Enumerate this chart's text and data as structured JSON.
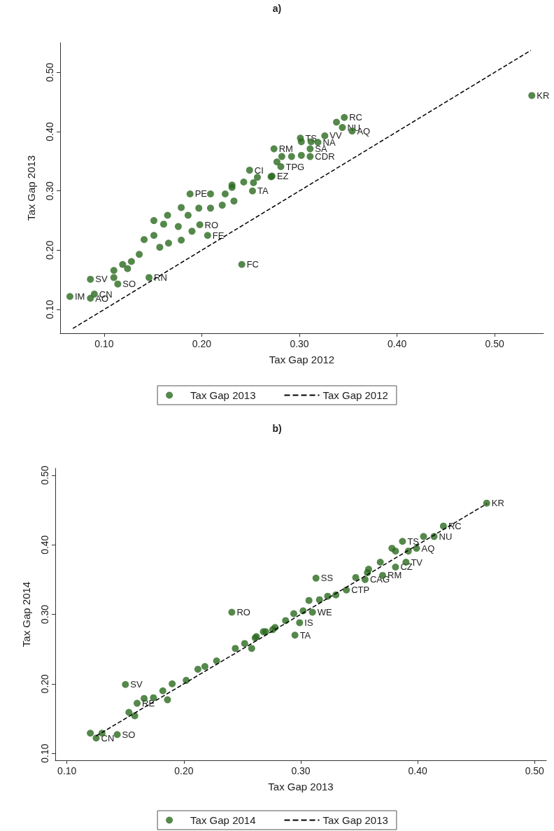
{
  "chart_data": [
    {
      "type": "scatter",
      "title": "a)",
      "xlabel": "Tax Gap 2012",
      "ylabel": "Tax Gap 2013",
      "xlim": [
        0.055,
        0.55
      ],
      "ylim": [
        0.06,
        0.55
      ],
      "xticks": [
        {
          "value": 0.1,
          "label": "0.10"
        },
        {
          "value": 0.2,
          "label": "0.20"
        },
        {
          "value": 0.3,
          "label": "0.30"
        },
        {
          "value": 0.4,
          "label": "0.40"
        },
        {
          "value": 0.5,
          "label": "0.50"
        }
      ],
      "yticks": [
        {
          "value": 0.1,
          "label": "0.10"
        },
        {
          "value": 0.2,
          "label": "0.20"
        },
        {
          "value": 0.3,
          "label": "0.30"
        },
        {
          "value": 0.4,
          "label": "0.40"
        },
        {
          "value": 0.5,
          "label": "0.50"
        }
      ],
      "grid": false,
      "legend": "bottom",
      "marker": "circle",
      "series": [
        {
          "name": "Tax Gap 2013",
          "type": "scatter",
          "color": "#2a6a1e",
          "x": [
            0.065,
            0.086,
            0.09,
            0.086,
            0.11,
            0.11,
            0.114,
            0.146,
            0.241,
            0.206,
            0.198,
            0.188,
            0.252,
            0.249,
            0.179,
            0.151,
            0.165,
            0.141,
            0.151,
            0.119,
            0.128,
            0.136,
            0.124,
            0.161,
            0.176,
            0.19,
            0.179,
            0.166,
            0.157,
            0.186,
            0.209,
            0.221,
            0.233,
            0.224,
            0.231,
            0.243,
            0.257,
            0.209,
            0.197,
            0.271,
            0.274,
            0.538,
            0.346,
            0.338,
            0.344,
            0.354,
            0.326,
            0.301,
            0.302,
            0.312,
            0.319,
            0.311,
            0.282,
            0.292,
            0.302,
            0.311,
            0.277,
            0.281,
            0.272,
            0.253,
            0.231
          ],
          "values": [
            0.122,
            0.119,
            0.126,
            0.151,
            0.166,
            0.154,
            0.143,
            0.154,
            0.176,
            0.225,
            0.243,
            0.295,
            0.3,
            0.335,
            0.272,
            0.25,
            0.259,
            0.218,
            0.225,
            0.176,
            0.181,
            0.193,
            0.169,
            0.244,
            0.24,
            0.232,
            0.217,
            0.212,
            0.205,
            0.259,
            0.271,
            0.276,
            0.283,
            0.295,
            0.306,
            0.315,
            0.323,
            0.295,
            0.271,
            0.324,
            0.371,
            0.461,
            0.424,
            0.416,
            0.407,
            0.401,
            0.393,
            0.389,
            0.383,
            0.383,
            0.382,
            0.371,
            0.358,
            0.358,
            0.36,
            0.358,
            0.349,
            0.341,
            0.325,
            0.314,
            0.31
          ]
        },
        {
          "name": "Tax Gap 2012",
          "type": "line",
          "color": "#000000",
          "line_style": "dashed",
          "marker": "none",
          "x": [
            0.068,
            0.537
          ],
          "values": [
            0.068,
            0.537
          ]
        }
      ],
      "annotations": [
        {
          "text": "IM",
          "x": 0.065,
          "y": 0.122
        },
        {
          "text": "AO",
          "x": 0.086,
          "y": 0.119
        },
        {
          "text": "CN",
          "x": 0.09,
          "y": 0.126
        },
        {
          "text": "SV",
          "x": 0.086,
          "y": 0.151
        },
        {
          "text": "SO",
          "x": 0.114,
          "y": 0.143
        },
        {
          "text": "RN",
          "x": 0.146,
          "y": 0.154
        },
        {
          "text": "FC",
          "x": 0.241,
          "y": 0.176
        },
        {
          "text": "FE",
          "x": 0.206,
          "y": 0.225
        },
        {
          "text": "RO",
          "x": 0.198,
          "y": 0.243
        },
        {
          "text": "PE",
          "x": 0.188,
          "y": 0.295
        },
        {
          "text": "TA",
          "x": 0.252,
          "y": 0.3
        },
        {
          "text": "CI",
          "x": 0.249,
          "y": 0.335
        },
        {
          "text": "EZ",
          "x": 0.272,
          "y": 0.325
        },
        {
          "text": "TPG",
          "x": 0.281,
          "y": 0.341
        },
        {
          "text": "RM",
          "x": 0.274,
          "y": 0.371
        },
        {
          "text": "CDR",
          "x": 0.311,
          "y": 0.358
        },
        {
          "text": "SA",
          "x": 0.311,
          "y": 0.371
        },
        {
          "text": "NA",
          "x": 0.319,
          "y": 0.382
        },
        {
          "text": "TS",
          "x": 0.301,
          "y": 0.389
        },
        {
          "text": "VV",
          "x": 0.326,
          "y": 0.393
        },
        {
          "text": "AQ",
          "x": 0.354,
          "y": 0.401
        },
        {
          "text": "NU",
          "x": 0.344,
          "y": 0.407
        },
        {
          "text": "RC",
          "x": 0.346,
          "y": 0.424
        },
        {
          "text": "KR",
          "x": 0.538,
          "y": 0.461
        }
      ]
    },
    {
      "type": "scatter",
      "title": "b)",
      "xlabel": "Tax Gap 2013",
      "ylabel": "Tax Gap 2014",
      "xlim": [
        0.09,
        0.51
      ],
      "ylim": [
        0.09,
        0.51
      ],
      "xticks": [
        {
          "value": 0.1,
          "label": "0.10"
        },
        {
          "value": 0.2,
          "label": "0.20"
        },
        {
          "value": 0.3,
          "label": "0.30"
        },
        {
          "value": 0.4,
          "label": "0.40"
        },
        {
          "value": 0.5,
          "label": "0.50"
        }
      ],
      "yticks": [
        {
          "value": 0.1,
          "label": "0.10"
        },
        {
          "value": 0.2,
          "label": "0.20"
        },
        {
          "value": 0.3,
          "label": "0.30"
        },
        {
          "value": 0.4,
          "label": "0.40"
        },
        {
          "value": 0.5,
          "label": "0.50"
        }
      ],
      "grid": false,
      "legend": "bottom",
      "marker": "circle",
      "series": [
        {
          "name": "Tax Gap 2014",
          "type": "scatter",
          "color": "#2a6a1e",
          "x": [
            0.241,
            0.15,
            0.143,
            0.12,
            0.125,
            0.13,
            0.153,
            0.158,
            0.16,
            0.166,
            0.174,
            0.182,
            0.19,
            0.186,
            0.202,
            0.212,
            0.218,
            0.228,
            0.244,
            0.252,
            0.262,
            0.27,
            0.278,
            0.459,
            0.422,
            0.414,
            0.405,
            0.387,
            0.399,
            0.378,
            0.381,
            0.392,
            0.39,
            0.381,
            0.368,
            0.358,
            0.37,
            0.357,
            0.347,
            0.355,
            0.313,
            0.339,
            0.33,
            0.323,
            0.316,
            0.307,
            0.31,
            0.302,
            0.294,
            0.287,
            0.299,
            0.295,
            0.276,
            0.268,
            0.261,
            0.258
          ],
          "values": [
            0.303,
            0.199,
            0.127,
            0.129,
            0.122,
            0.129,
            0.159,
            0.154,
            0.172,
            0.179,
            0.18,
            0.19,
            0.2,
            0.177,
            0.205,
            0.221,
            0.225,
            0.233,
            0.251,
            0.258,
            0.268,
            0.275,
            0.281,
            0.46,
            0.427,
            0.412,
            0.412,
            0.405,
            0.395,
            0.395,
            0.391,
            0.391,
            0.375,
            0.368,
            0.375,
            0.365,
            0.356,
            0.36,
            0.353,
            0.35,
            0.352,
            0.335,
            0.328,
            0.326,
            0.321,
            0.32,
            0.303,
            0.305,
            0.301,
            0.291,
            0.288,
            0.27,
            0.278,
            0.275,
            0.266,
            0.251
          ]
        },
        {
          "name": "Tax Gap 2013",
          "type": "line",
          "color": "#000000",
          "line_style": "dashed",
          "marker": "none",
          "x": [
            0.125,
            0.459
          ],
          "values": [
            0.125,
            0.459
          ]
        }
      ],
      "annotations": [
        {
          "text": "RO",
          "x": 0.241,
          "y": 0.303
        },
        {
          "text": "SV",
          "x": 0.15,
          "y": 0.199
        },
        {
          "text": "SO",
          "x": 0.143,
          "y": 0.127
        },
        {
          "text": "CN",
          "x": 0.125,
          "y": 0.122
        },
        {
          "text": "RE",
          "x": 0.16,
          "y": 0.172
        },
        {
          "text": "TA",
          "x": 0.295,
          "y": 0.27
        },
        {
          "text": "IS",
          "x": 0.299,
          "y": 0.288
        },
        {
          "text": "WE",
          "x": 0.31,
          "y": 0.303
        },
        {
          "text": "SS",
          "x": 0.313,
          "y": 0.352
        },
        {
          "text": "CTP",
          "x": 0.339,
          "y": 0.335
        },
        {
          "text": "CAG",
          "x": 0.355,
          "y": 0.35
        },
        {
          "text": "RM",
          "x": 0.37,
          "y": 0.356
        },
        {
          "text": "CZ",
          "x": 0.381,
          "y": 0.368
        },
        {
          "text": "TV",
          "x": 0.39,
          "y": 0.375
        },
        {
          "text": "AQ",
          "x": 0.399,
          "y": 0.395
        },
        {
          "text": "TS",
          "x": 0.387,
          "y": 0.405
        },
        {
          "text": "NU",
          "x": 0.414,
          "y": 0.412
        },
        {
          "text": "RC",
          "x": 0.422,
          "y": 0.427
        },
        {
          "text": "KR",
          "x": 0.459,
          "y": 0.46
        }
      ]
    }
  ]
}
